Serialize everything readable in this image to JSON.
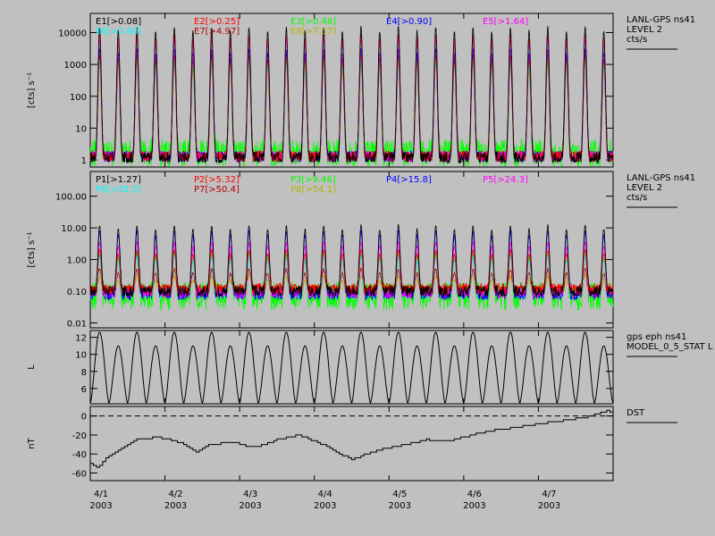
{
  "panels": {
    "electrons": {
      "title_lines": [
        "LANL-GPS ns41",
        "LEVEL 2",
        "cts/s"
      ],
      "ylabel": "[cts] s⁻¹",
      "legend": [
        {
          "label": "E1[>0.08]",
          "color": "#000000"
        },
        {
          "label": "E2[>0.25]",
          "color": "#ff0000"
        },
        {
          "label": "E3[>0.48]",
          "color": "#00ff00"
        },
        {
          "label": "E4[>0.90]",
          "color": "#0000ff"
        },
        {
          "label": "E5[>1.64]",
          "color": "#ff00ff"
        },
        {
          "label": "E6[>2.60]",
          "color": "#00ffff"
        },
        {
          "label": "E7[>4.97]",
          "color": "#b40000"
        },
        {
          "label": "E8[>7.57]",
          "color": "#b4b400"
        }
      ],
      "ytick_labels": [
        "1",
        "10",
        "100",
        "1000",
        "10000"
      ]
    },
    "protons": {
      "title_lines": [
        "LANL-GPS ns41",
        "LEVEL 2",
        "cts/s"
      ],
      "ylabel": "[cts] s⁻¹",
      "legend": [
        {
          "label": "P1[>1.27]",
          "color": "#000000"
        },
        {
          "label": "P2[>5.32]",
          "color": "#ff0000"
        },
        {
          "label": "P3[>9.46]",
          "color": "#00ff00"
        },
        {
          "label": "P4[>15.8]",
          "color": "#0000ff"
        },
        {
          "label": "P5[>24.3]",
          "color": "#ff00ff"
        },
        {
          "label": "P6[>35.5]",
          "color": "#00ffff"
        },
        {
          "label": "P7[>50.4]",
          "color": "#b40000"
        },
        {
          "label": "P8[>54.1]",
          "color": "#b4b400"
        }
      ],
      "ytick_labels": [
        "0.01",
        "0.10",
        "1.00",
        "10.00",
        "100.00"
      ]
    },
    "lshell": {
      "title_lines": [
        "gps eph ns41",
        "MODEL_0_5_STAT L"
      ],
      "ylabel": "L",
      "ytick_labels": [
        "6",
        "8",
        "10",
        "12"
      ]
    },
    "dst": {
      "title_lines": [
        "DST"
      ],
      "ylabel": "nT",
      "ytick_labels": [
        "-60",
        "-40",
        "-20",
        "0"
      ]
    }
  },
  "xaxis": {
    "tick_labels": [
      {
        "day": "4/1",
        "year": "2003"
      },
      {
        "day": "4/2",
        "year": "2003"
      },
      {
        "day": "4/3",
        "year": "2003"
      },
      {
        "day": "4/4",
        "year": "2003"
      },
      {
        "day": "4/5",
        "year": "2003"
      },
      {
        "day": "4/6",
        "year": "2003"
      },
      {
        "day": "4/7",
        "year": "2003"
      }
    ]
  },
  "chart_data": [
    {
      "type": "line",
      "panel": "electrons",
      "y_scale": "log",
      "ylim": [
        0.6,
        40000
      ],
      "x_range_days": [
        0,
        7.0
      ],
      "orbit_count": 28,
      "series_peaks": [
        {
          "name": "E1[>0.08]",
          "peak": 15000,
          "baseline": 1.2
        },
        {
          "name": "E2[>0.25]",
          "peak": 9000,
          "baseline": 1.3
        },
        {
          "name": "E3[>0.48]",
          "peak": 1200,
          "baseline": 1.6
        },
        {
          "name": "E4[>0.90]",
          "peak": 3000,
          "baseline": 1.3
        },
        {
          "name": "E5[>1.64]",
          "peak": 6000,
          "baseline": 1.3
        },
        {
          "name": "E6[>2.60]",
          "peak": 4000,
          "baseline": 1.3
        },
        {
          "name": "E7[>4.97]",
          "peak": 2000,
          "baseline": 1.3
        },
        {
          "name": "E8[>7.57]",
          "peak": 1500,
          "baseline": 1.3
        }
      ]
    },
    {
      "type": "line",
      "panel": "protons",
      "y_scale": "log",
      "ylim": [
        0.007,
        600
      ],
      "x_range_days": [
        0,
        7.0
      ],
      "orbit_count": 28,
      "series_peaks": [
        {
          "name": "P1[>1.27]",
          "peak": 12,
          "baseline": 0.1
        },
        {
          "name": "P2[>5.32]",
          "peak": 2.0,
          "baseline": 0.12
        },
        {
          "name": "P3[>9.46]",
          "peak": 1.5,
          "baseline": 0.07
        },
        {
          "name": "P4[>15.8]",
          "peak": 8,
          "baseline": 0.08
        },
        {
          "name": "P5[>24.3]",
          "peak": 3.5,
          "baseline": 0.09
        },
        {
          "name": "P6[>35.5]",
          "peak": 1.2,
          "baseline": 0.09
        },
        {
          "name": "P7[>50.4]",
          "peak": 0.5,
          "baseline": 0.1
        },
        {
          "name": "P8[>54.1]",
          "peak": 0.3,
          "baseline": 0.1
        }
      ]
    },
    {
      "type": "line",
      "panel": "lshell",
      "series_name": "MODEL_0_5_STAT L",
      "ylim": [
        4.2,
        12.8
      ],
      "x_range_days": [
        0,
        7.0
      ],
      "orbit_count": 28,
      "min_L": 4.3,
      "max_L_alternating": [
        12.6,
        11.0
      ]
    },
    {
      "type": "line",
      "panel": "dst",
      "series_name": "DST",
      "ylim": [
        -68,
        10
      ],
      "x_range_days": [
        0,
        7.0
      ],
      "reference_line": 0,
      "x_days": [
        0,
        0.1,
        0.2,
        0.4,
        0.6,
        0.9,
        1.2,
        1.4,
        1.6,
        1.9,
        2.2,
        2.5,
        2.8,
        3.1,
        3.3,
        3.5,
        3.7,
        3.9,
        4.2,
        4.5,
        4.8,
        5.1,
        5.4,
        5.7,
        6.0,
        6.3,
        6.6,
        6.8,
        6.9,
        7.0
      ],
      "values": [
        -50,
        -55,
        -45,
        -35,
        -25,
        -22,
        -28,
        -38,
        -30,
        -28,
        -33,
        -25,
        -20,
        -30,
        -38,
        -46,
        -40,
        -35,
        -30,
        -25,
        -26,
        -20,
        -15,
        -12,
        -8,
        -5,
        -2,
        2,
        6,
        3
      ]
    }
  ]
}
